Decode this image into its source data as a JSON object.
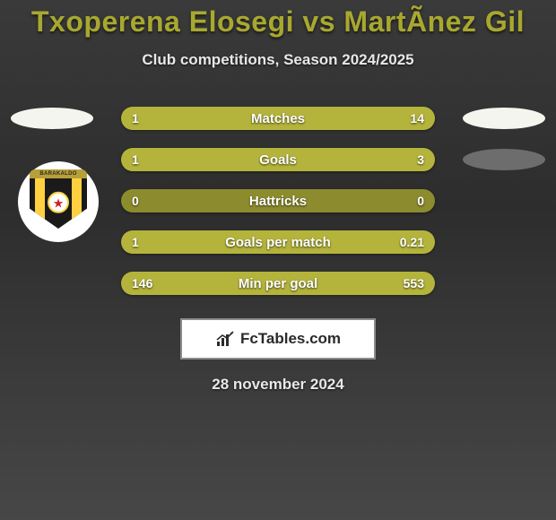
{
  "title": "Txoperena Elosegi vs MartÃnez Gil",
  "subtitle": "Club competitions, Season 2024/2025",
  "date": "28 november 2024",
  "brand": "FcTables.com",
  "colors": {
    "accent": "#a8a830",
    "bar_track": "#8c8c2e",
    "bar_fill": "#b4b43c",
    "bg_top": "#3a3a3a",
    "bg_bottom": "#474747",
    "text_light": "#e8e8e8",
    "blob_left": "#f5f5f0",
    "blob_right": "#6d6d6d",
    "crest_yellow": "#ffd040",
    "crest_black": "#1a1a1a",
    "crest_red": "#d02020"
  },
  "crest_text": "BARAKALDO",
  "rows": [
    {
      "label": "Matches",
      "left_val": "1",
      "right_val": "14",
      "left_pct": 6.7,
      "right_pct": 93.3,
      "left_blob": true,
      "right_blob": true,
      "left_blob_color": "#f5f5f0",
      "right_blob_color": "#f5f5f0"
    },
    {
      "label": "Goals",
      "left_val": "1",
      "right_val": "3",
      "left_pct": 25.0,
      "right_pct": 75.0,
      "left_blob": false,
      "right_blob": true,
      "left_blob_color": "",
      "right_blob_color": "#6d6d6d"
    },
    {
      "label": "Hattricks",
      "left_val": "0",
      "right_val": "0",
      "left_pct": 0,
      "right_pct": 0,
      "left_blob": false,
      "right_blob": false,
      "left_blob_color": "",
      "right_blob_color": ""
    },
    {
      "label": "Goals per match",
      "left_val": "1",
      "right_val": "0.21",
      "left_pct": 82.6,
      "right_pct": 17.4,
      "left_blob": false,
      "right_blob": false,
      "left_blob_color": "",
      "right_blob_color": ""
    },
    {
      "label": "Min per goal",
      "left_val": "146",
      "right_val": "553",
      "left_pct": 20.9,
      "right_pct": 79.1,
      "left_blob": false,
      "right_blob": false,
      "left_blob_color": "",
      "right_blob_color": ""
    }
  ]
}
